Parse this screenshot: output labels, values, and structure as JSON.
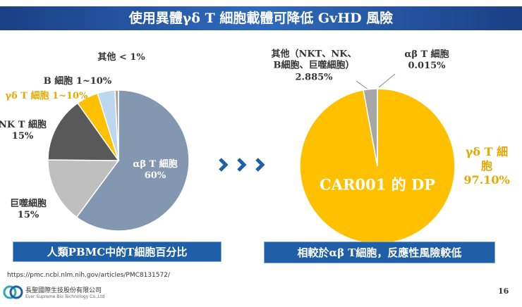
{
  "header": {
    "title": "使用異體γδ T 細胞載體可降低 GvHD 風險"
  },
  "chart_data": [
    {
      "type": "pie",
      "categories": [
        "αβ T 細胞",
        "巨噬細胞",
        "NK T 細胞",
        "γδ T 細胞",
        "B 細胞",
        "其他"
      ],
      "values": [
        60,
        15,
        15,
        5,
        4,
        0.8
      ],
      "value_labels": [
        "60%",
        "15%",
        "15%",
        "1~10%",
        "1~10%",
        "< 1%"
      ],
      "colors": [
        "#8497b0",
        "#bfbfbf",
        "#595959",
        "#ffc000",
        "#bdd7ee",
        "#a6a6a6"
      ],
      "caption": "人類PBMC中的T細胞百分比"
    },
    {
      "type": "pie",
      "categories": [
        "γδ T 細胞",
        "其他（NKT、NK、\nB細胞、巨噬細胞）",
        "αβ T 細胞"
      ],
      "values": [
        97.1,
        2.885,
        0.015
      ],
      "value_labels": [
        "97.10%",
        "2.885%",
        "0.015%"
      ],
      "colors": [
        "#ffc000",
        "#a6a6a6",
        "#2e75b6"
      ],
      "annotation": "CAR001 的 DP",
      "caption": "相較於αβ T細胞，反應性風險較低"
    }
  ],
  "footer": {
    "source": "https://pmc.ncbi.nlm.nih.gov/articles/PMC8131572/",
    "company": "長聖國際生技股份有限公司",
    "company_en": "Ever Supreme Bio Technology Co.,Ltd",
    "page": "16"
  }
}
